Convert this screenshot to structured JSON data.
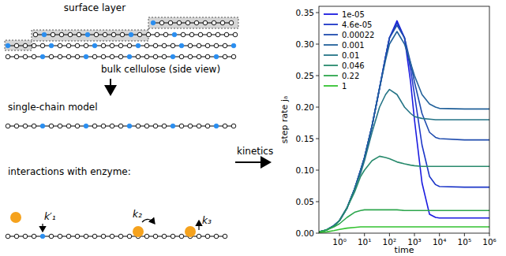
{
  "chart_data": {
    "type": "line",
    "x_label": "time",
    "y_label": "step rate jₐ",
    "log": "x",
    "legend": "upper left",
    "grid": false,
    "xlim": [
      0.15,
      1000000
    ],
    "ylim": [
      0,
      0.36
    ],
    "xticks": [
      {
        "value": 1,
        "label": "10⁰"
      },
      {
        "value": 10,
        "label": "10¹"
      },
      {
        "value": 100,
        "label": "10²"
      },
      {
        "value": 1000,
        "label": "10³"
      },
      {
        "value": 10000,
        "label": "10⁴"
      },
      {
        "value": 100000,
        "label": "10⁵"
      },
      {
        "value": 1000000,
        "label": "10⁶"
      }
    ],
    "yticks": [
      {
        "value": 0,
        "label": "0.00"
      },
      {
        "value": 0.05,
        "label": "0.05"
      },
      {
        "value": 0.1,
        "label": "0.10"
      },
      {
        "value": 0.15,
        "label": "0.15"
      },
      {
        "value": 0.2,
        "label": "0.20"
      },
      {
        "value": 0.25,
        "label": "0.25"
      },
      {
        "value": 0.3,
        "label": "0.30"
      },
      {
        "value": 0.35,
        "label": "0.35"
      }
    ],
    "x": [
      0.15,
      0.3,
      0.6,
      1,
      2,
      4,
      7,
      10,
      20,
      40,
      70,
      100,
      200,
      400,
      700,
      1000,
      2000,
      4000,
      7000,
      10000,
      100000,
      1000000
    ],
    "series": [
      {
        "name": "1e-05",
        "color": "#1a1ae0",
        "values": [
          0.002,
          0.005,
          0.012,
          0.02,
          0.04,
          0.07,
          0.1,
          0.12,
          0.17,
          0.23,
          0.28,
          0.31,
          0.337,
          0.31,
          0.24,
          0.18,
          0.08,
          0.03,
          0.025,
          0.024,
          0.024,
          0.024
        ]
      },
      {
        "name": "4.6e-05",
        "color": "#1c36c8",
        "values": [
          0.002,
          0.005,
          0.012,
          0.02,
          0.04,
          0.07,
          0.1,
          0.12,
          0.17,
          0.23,
          0.28,
          0.31,
          0.334,
          0.31,
          0.26,
          0.22,
          0.14,
          0.09,
          0.077,
          0.074,
          0.073,
          0.073
        ]
      },
      {
        "name": "0.00022",
        "color": "#1f4cae",
        "values": [
          0.002,
          0.005,
          0.012,
          0.02,
          0.04,
          0.07,
          0.1,
          0.12,
          0.17,
          0.23,
          0.28,
          0.31,
          0.33,
          0.31,
          0.27,
          0.24,
          0.19,
          0.16,
          0.152,
          0.15,
          0.148,
          0.148
        ]
      },
      {
        "name": "0.001",
        "color": "#22619a",
        "values": [
          0.002,
          0.005,
          0.012,
          0.02,
          0.04,
          0.07,
          0.1,
          0.12,
          0.17,
          0.23,
          0.275,
          0.3,
          0.32,
          0.3,
          0.27,
          0.25,
          0.22,
          0.205,
          0.2,
          0.198,
          0.197,
          0.197
        ]
      },
      {
        "name": "0.01",
        "color": "#247486",
        "values": [
          0.002,
          0.005,
          0.012,
          0.02,
          0.04,
          0.07,
          0.095,
          0.115,
          0.16,
          0.2,
          0.22,
          0.228,
          0.22,
          0.2,
          0.19,
          0.185,
          0.182,
          0.181,
          0.18,
          0.18,
          0.18,
          0.18
        ]
      },
      {
        "name": "0.046",
        "color": "#288a6c",
        "values": [
          0.002,
          0.005,
          0.011,
          0.02,
          0.04,
          0.065,
          0.09,
          0.1,
          0.115,
          0.122,
          0.12,
          0.118,
          0.113,
          0.11,
          0.108,
          0.107,
          0.106,
          0.106,
          0.106,
          0.106,
          0.106,
          0.106
        ]
      },
      {
        "name": "0.22",
        "color": "#2ca64c",
        "values": [
          0.002,
          0.005,
          0.01,
          0.015,
          0.025,
          0.033,
          0.036,
          0.037,
          0.037,
          0.037,
          0.037,
          0.037,
          0.037,
          0.036,
          0.036,
          0.036,
          0.036,
          0.036,
          0.036,
          0.036,
          0.036,
          0.036
        ]
      },
      {
        "name": "1",
        "color": "#33c230",
        "values": [
          0.001,
          0.002,
          0.004,
          0.006,
          0.008,
          0.009,
          0.01,
          0.01,
          0.01,
          0.01,
          0.01,
          0.01,
          0.01,
          0.01,
          0.01,
          0.01,
          0.01,
          0.01,
          0.01,
          0.01,
          0.01,
          0.01
        ]
      }
    ]
  },
  "diagram": {
    "surface_label": "surface layer",
    "bulk_label": "bulk cellulose (side view)",
    "model_label": "single-chain model",
    "interactions_label": "interactions with enzyme:",
    "kinetics_label": "kinetics",
    "rates": [
      "k′₁",
      "k₂",
      "k₃"
    ]
  }
}
